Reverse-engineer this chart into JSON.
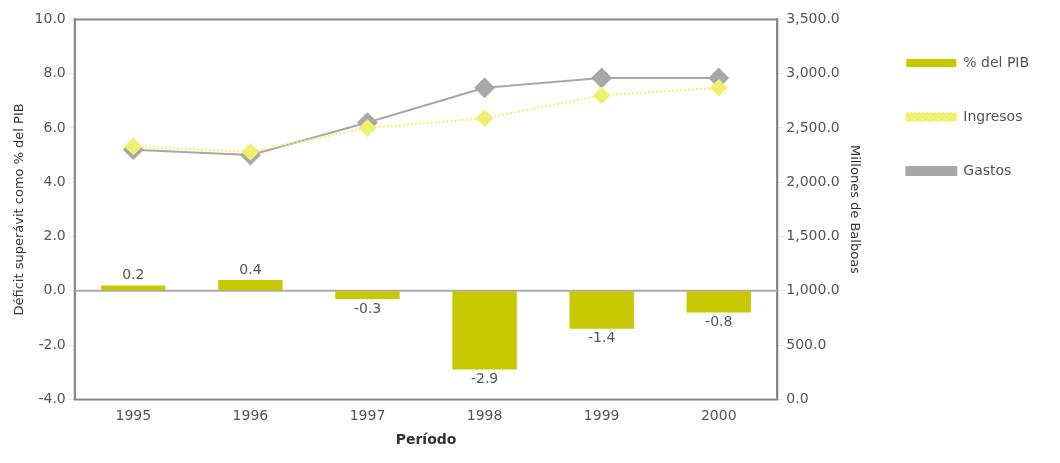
{
  "chart_data": {
    "type": "bar",
    "xlabel": "Período",
    "ylabel": "Déficit superávit como % del PIB",
    "y2label": "Millones de Balboas",
    "categories": [
      "1995",
      "1996",
      "1997",
      "1998",
      "1999",
      "2000"
    ],
    "series": [
      {
        "name": "% del PIB",
        "color": "#c8c800",
        "values": [
          0.2,
          0.4,
          -0.3,
          -2.9,
          -1.4,
          -0.8
        ],
        "value_labels": [
          "0.2",
          "0.4",
          "-0.3",
          "-2.9",
          "-1.4",
          "-0.8"
        ]
      },
      {
        "name": "Ingresos",
        "type": "line",
        "axis": "y2",
        "color": "#f0f070",
        "marker": "diamond",
        "line_style": "dotted",
        "values": [
          2330,
          2280,
          2500,
          2590,
          2800,
          2870
        ]
      },
      {
        "name": "Gastos",
        "type": "line",
        "axis": "y2",
        "color": "#a8a8a8",
        "marker": "diamond",
        "line_style": "solid",
        "values": [
          2300,
          2250,
          2550,
          2870,
          2960,
          2960
        ]
      }
    ],
    "ylim": [
      -4,
      10
    ],
    "yticks": [
      {
        "value": -4,
        "label": "-4.0"
      },
      {
        "value": -2,
        "label": "-2.0"
      },
      {
        "value": 0,
        "label": "0.0"
      },
      {
        "value": 2,
        "label": "2.0"
      },
      {
        "value": 4,
        "label": "4.0"
      },
      {
        "value": 6,
        "label": "6.0"
      },
      {
        "value": 8,
        "label": "8.0"
      },
      {
        "value": 10,
        "label": "10.0"
      }
    ],
    "y2lim": [
      0,
      3500
    ],
    "y2ticks": [
      {
        "value": 0,
        "label": "0.0"
      },
      {
        "value": 500,
        "label": "500.0"
      },
      {
        "value": 1000,
        "label": "1,000.0"
      },
      {
        "value": 1500,
        "label": "1,500.0"
      },
      {
        "value": 2000,
        "label": "2,000.0"
      },
      {
        "value": 2500,
        "label": "2,500.0"
      },
      {
        "value": 3000,
        "label": "3,000.0"
      },
      {
        "value": 3500,
        "label": "3,500.0"
      }
    ],
    "ref_lines": [
      {
        "axis": "y",
        "value": 0,
        "color": "#aaaaaa"
      }
    ],
    "grid": false,
    "legend": "right"
  }
}
